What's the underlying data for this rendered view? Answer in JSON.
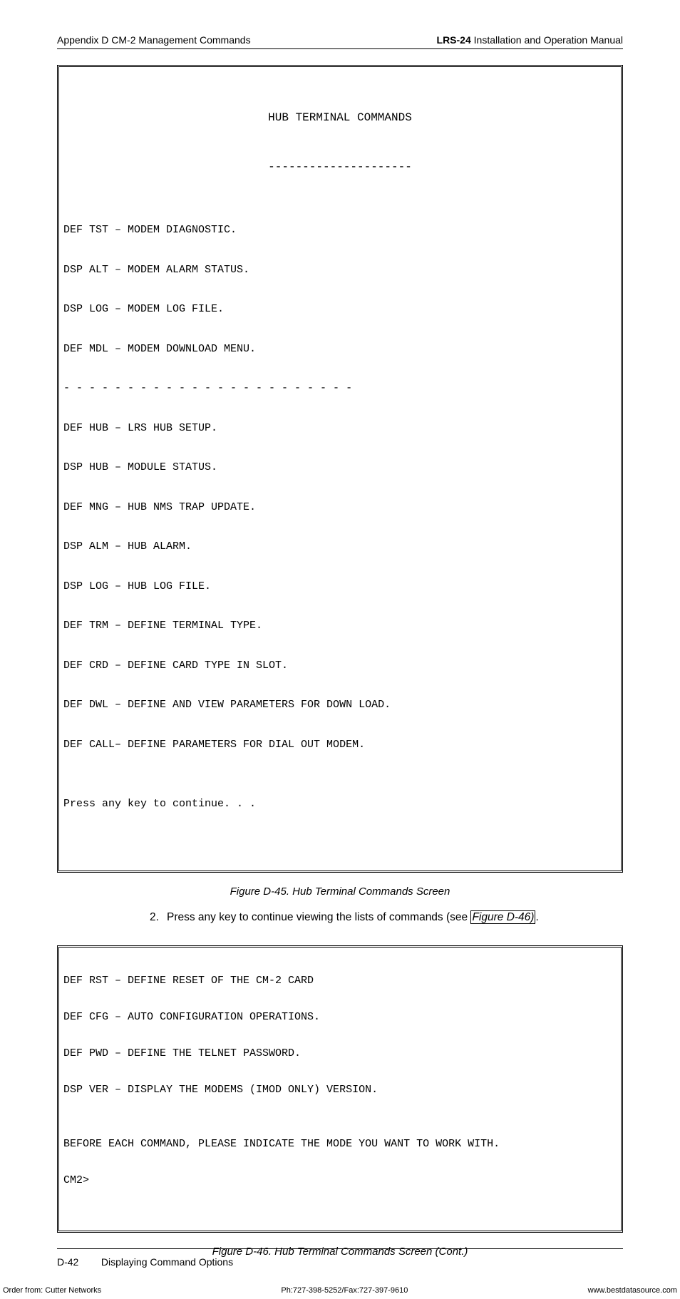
{
  "header": {
    "left": "Appendix D  CM-2 Management Commands",
    "right_bold": "LRS-24",
    "right_rest": " Installation and Operation Manual"
  },
  "terminal1": {
    "title": "HUB TERMINAL COMMANDS",
    "underline": "---------------------",
    "lines": [
      "",
      "DEF TST – MODEM DIAGNOSTIC.",
      "DSP ALT – MODEM ALARM STATUS.",
      "DSP LOG – MODEM LOG FILE.",
      "DEF MDL – MODEM DOWNLOAD MENU.",
      "- - - - - - - - - - - - - - - - - - - - - - -",
      "DEF HUB – LRS HUB SETUP.",
      "DSP HUB – MODULE STATUS.",
      "DEF MNG – HUB NMS TRAP UPDATE.",
      "DSP ALM – HUB ALARM.",
      "DSP LOG – HUB LOG FILE.",
      "DEF TRM – DEFINE TERMINAL TYPE.",
      "DEF CRD – DEFINE CARD TYPE IN SLOT.",
      "DEF DWL – DEFINE AND VIEW PARAMETERS FOR DOWN LOAD.",
      "DEF CALL– DEFINE PARAMETERS FOR DIAL OUT MODEM.",
      "",
      "Press any key to continue. . ."
    ]
  },
  "caption1": "Figure D-45.  Hub Terminal Commands Screen",
  "instruction": {
    "num": "2.",
    "text_before": "Press any key to continue viewing the lists of commands (see ",
    "figref": "Figure D-46)",
    "text_after": "."
  },
  "terminal2": {
    "lines": [
      "DEF RST – DEFINE RESET OF THE CM-2 CARD",
      "DEF CFG – AUTO CONFIGURATION OPERATIONS.",
      "DEF PWD – DEFINE THE TELNET PASSWORD.",
      "DSP VER – DISPLAY THE MODEMS (IMOD ONLY) VERSION.",
      "",
      "BEFORE EACH COMMAND, PLEASE INDICATE THE MODE YOU WANT TO WORK WITH.",
      "CM2>"
    ]
  },
  "caption2": "Figure D-46.  Hub Terminal Commands Screen (Cont.)",
  "bottom": {
    "page": "D-42",
    "title": "Displaying Command Options"
  },
  "footer": {
    "left": "Order from: Cutter Networks",
    "center": "Ph:727-398-5252/Fax:727-397-9610",
    "right": "www.bestdatasource.com"
  }
}
